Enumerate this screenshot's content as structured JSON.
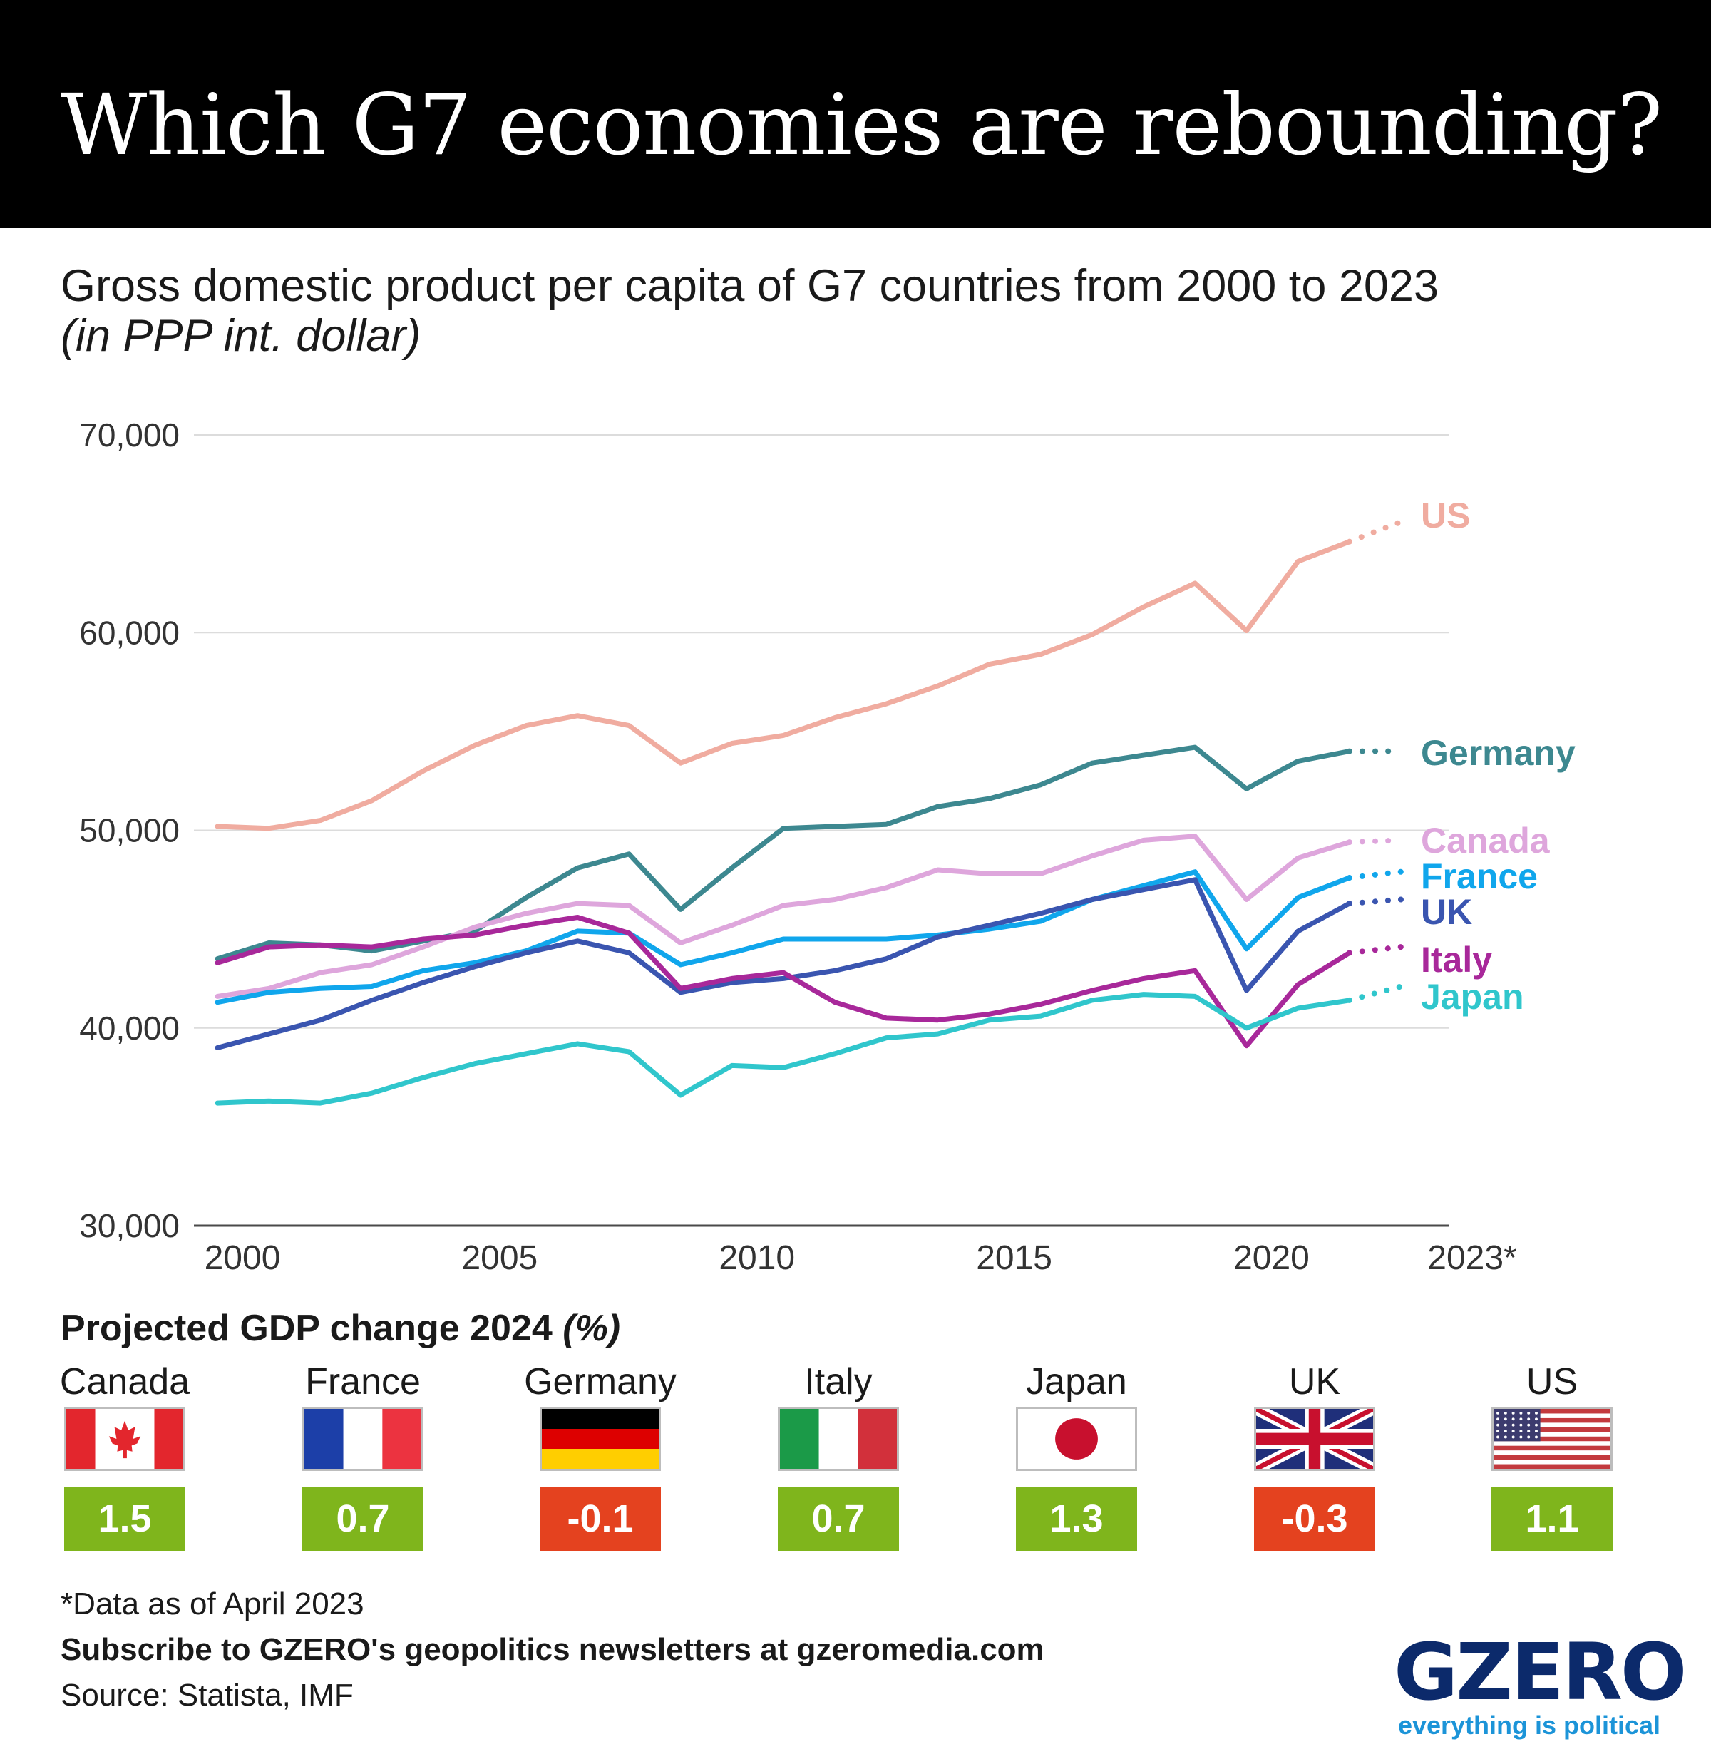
{
  "title": "Which G7 economies are rebounding?",
  "subtitle": "Gross domestic product per capita of G7 countries from 2000 to 2023",
  "unit": "(in PPP int. dollar)",
  "chart_data": {
    "type": "line",
    "title": "Gross domestic product per capita of G7 countries from 2000 to 2023",
    "ylabel": "",
    "xlabel": "",
    "x": [
      2000,
      2001,
      2002,
      2003,
      2004,
      2005,
      2006,
      2007,
      2008,
      2009,
      2010,
      2011,
      2012,
      2013,
      2014,
      2015,
      2016,
      2017,
      2018,
      2019,
      2020,
      2021,
      2022,
      2023
    ],
    "projected_from": 2022,
    "xticks": [
      "2000",
      "2005",
      "2010",
      "2015",
      "2020",
      "2023*"
    ],
    "yticks": [
      "30,000",
      "40,000",
      "50,000",
      "60,000",
      "70,000"
    ],
    "ylim": [
      30000,
      70000
    ],
    "grid": true,
    "series": [
      {
        "name": "US",
        "color": "#f0aca0",
        "values": [
          50200,
          50100,
          50500,
          51500,
          53000,
          54300,
          55300,
          55800,
          55300,
          53400,
          54400,
          54800,
          55700,
          56400,
          57300,
          58400,
          58900,
          59900,
          61300,
          62500,
          60100,
          63600,
          64600,
          65600
        ]
      },
      {
        "name": "Germany",
        "color": "#3d8890",
        "values": [
          43500,
          44300,
          44200,
          43900,
          44400,
          44900,
          46600,
          48100,
          48800,
          46000,
          48100,
          50100,
          50200,
          50300,
          51200,
          51600,
          52300,
          53400,
          53800,
          54200,
          52100,
          53500,
          54000,
          54000
        ]
      },
      {
        "name": "Canada",
        "color": "#dea6dc",
        "values": [
          41600,
          42000,
          42800,
          43200,
          44100,
          45100,
          45800,
          46300,
          46200,
          44300,
          45200,
          46200,
          46500,
          47100,
          48000,
          47800,
          47800,
          48700,
          49500,
          49700,
          46500,
          48600,
          49400,
          49500
        ]
      },
      {
        "name": "France",
        "color": "#10a6ec",
        "values": [
          41300,
          41800,
          42000,
          42100,
          42900,
          43300,
          43900,
          44900,
          44800,
          43200,
          43800,
          44500,
          44500,
          44500,
          44700,
          45000,
          45400,
          46500,
          47200,
          47900,
          44000,
          46600,
          47600,
          47900
        ]
      },
      {
        "name": "UK",
        "color": "#3a55b0",
        "values": [
          39000,
          39700,
          40400,
          41400,
          42300,
          43100,
          43800,
          44400,
          43800,
          41800,
          42300,
          42500,
          42900,
          43500,
          44600,
          45200,
          45800,
          46500,
          47000,
          47500,
          41900,
          44900,
          46300,
          46500
        ]
      },
      {
        "name": "Italy",
        "color": "#a8289a",
        "values": [
          43300,
          44100,
          44200,
          44100,
          44500,
          44700,
          45200,
          45600,
          44800,
          42000,
          42500,
          42800,
          41300,
          40500,
          40400,
          40700,
          41200,
          41900,
          42500,
          42900,
          39100,
          42200,
          43800,
          44100
        ]
      },
      {
        "name": "Japan",
        "color": "#30c6cc",
        "values": [
          36200,
          36300,
          36200,
          36700,
          37500,
          38200,
          38700,
          39200,
          38800,
          36600,
          38100,
          38000,
          38700,
          39500,
          39700,
          40400,
          40600,
          41400,
          41700,
          41600,
          40000,
          41000,
          41400,
          42100
        ]
      }
    ]
  },
  "projected_change": {
    "title": "Projected GDP change 2024",
    "title_unit": "(%)",
    "positive_color": "#7fb51c",
    "negative_color": "#e4421f",
    "items": [
      {
        "country": "Canada",
        "value": "1.5",
        "sign": "positive",
        "flag": "canada-flag"
      },
      {
        "country": "France",
        "value": "0.7",
        "sign": "positive",
        "flag": "france-flag"
      },
      {
        "country": "Germany",
        "value": "-0.1",
        "sign": "negative",
        "flag": "germany-flag"
      },
      {
        "country": "Italy",
        "value": "0.7",
        "sign": "positive",
        "flag": "italy-flag"
      },
      {
        "country": "Japan",
        "value": "1.3",
        "sign": "positive",
        "flag": "japan-flag"
      },
      {
        "country": "UK",
        "value": "-0.3",
        "sign": "negative",
        "flag": "uk-flag"
      },
      {
        "country": "US",
        "value": "1.1",
        "sign": "positive",
        "flag": "us-flag"
      }
    ]
  },
  "footer": {
    "note": "*Data as of April 2023",
    "subscribe": "Subscribe to GZERO's geopolitics newsletters at gzeromedia.com",
    "source": "Source: Statista, IMF"
  },
  "logo": {
    "word": "GZERO",
    "tagline": "everything is political"
  }
}
